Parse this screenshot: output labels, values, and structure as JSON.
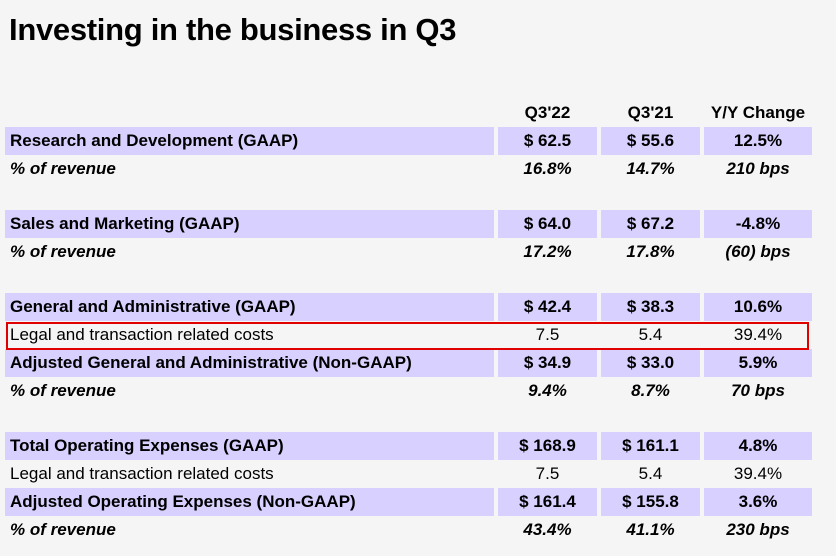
{
  "title": "Investing in the business in Q3",
  "headers": {
    "q22": "Q3'22",
    "q21": "Q3'21",
    "yoy": "Y/Y Change"
  },
  "rows": [
    {
      "label": "Research and Development (GAAP)",
      "q22": "$ 62.5",
      "q21": "$ 55.6",
      "yoy": "12.5%"
    },
    {
      "label": "% of revenue",
      "q22": "16.8%",
      "q21": "14.7%",
      "yoy": "210 bps"
    },
    {
      "label": "Sales and Marketing (GAAP)",
      "q22": "$ 64.0",
      "q21": "$ 67.2",
      "yoy": "-4.8%"
    },
    {
      "label": "% of revenue",
      "q22": "17.2%",
      "q21": "17.8%",
      "yoy": "(60) bps"
    },
    {
      "label": "General and Administrative (GAAP)",
      "q22": "$ 42.4",
      "q21": "$ 38.3",
      "yoy": "10.6%"
    },
    {
      "label": "Legal and transaction related costs",
      "q22": "7.5",
      "q21": "5.4",
      "yoy": "39.4%"
    },
    {
      "label": "Adjusted General and Administrative (Non-GAAP)",
      "q22": "$ 34.9",
      "q21": "$ 33.0",
      "yoy": "5.9%"
    },
    {
      "label": "% of revenue",
      "q22": "9.4%",
      "q21": "8.7%",
      "yoy": "70 bps"
    },
    {
      "label": "Total Operating Expenses (GAAP)",
      "q22": "$ 168.9",
      "q21": "$ 161.1",
      "yoy": "4.8%"
    },
    {
      "label": "Legal and transaction related costs",
      "q22": "7.5",
      "q21": "5.4",
      "yoy": "39.4%"
    },
    {
      "label": "Adjusted Operating Expenses (Non-GAAP)",
      "q22": "$ 161.4",
      "q21": "$ 155.8",
      "yoy": "3.6%"
    },
    {
      "label": "% of revenue",
      "q22": "43.4%",
      "q21": "41.1%",
      "yoy": "230 bps"
    }
  ],
  "colors": {
    "row_shade": "#d8d0ff",
    "highlight_border": "#e00000",
    "background": "#f5f5f5"
  }
}
